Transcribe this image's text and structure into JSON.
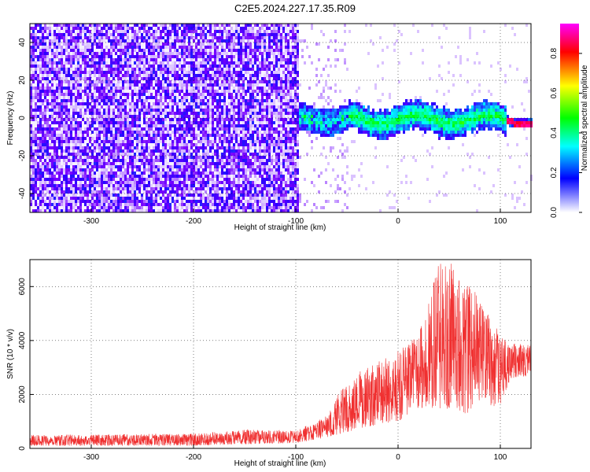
{
  "title": "C2E5.2024.227.17.35.R09",
  "chart_data": [
    {
      "type": "heatmap",
      "xlabel": "Height of straight line (km)",
      "ylabel": "Frequency (Hz)",
      "xlim": [
        -360,
        130
      ],
      "ylim": [
        -50,
        50
      ],
      "x_ticks": [
        -300,
        -200,
        -100,
        0,
        100
      ],
      "x_tick_labels": [
        "-300",
        "-200",
        "-100",
        "0",
        "100"
      ],
      "y_ticks": [
        -40,
        -20,
        0,
        20,
        40
      ],
      "y_tick_labels": [
        "-40",
        "-20",
        "0",
        "20",
        "40"
      ],
      "colorbar": {
        "label": "Normalized spectral amplitude",
        "range": [
          0,
          0.95
        ],
        "ticks": [
          0,
          0.2,
          0.4,
          0.6,
          0.8
        ],
        "tick_labels": [
          "0.0",
          "0.2",
          "0.4",
          "0.6",
          "0.8"
        ],
        "colormap": [
          "#ff00ff",
          "#ff0000",
          "#ffff00",
          "#00ff00",
          "#00ffff",
          "#0000ff",
          "#ffffff"
        ]
      },
      "regions": [
        {
          "x_range": [
            -360,
            -100
          ],
          "freq_range": [
            -50,
            50
          ],
          "amplitude": 0.15,
          "description_color": "#7b00ff"
        },
        {
          "x_range": [
            -100,
            130
          ],
          "freq_center": 0,
          "freq_halfwidth": 6,
          "amplitude": 0.25
        }
      ],
      "grid": true
    },
    {
      "type": "line",
      "xlabel": "Height of straight line (km)",
      "ylabel": "SNR (10 * v/v)",
      "xlim": [
        -360,
        130
      ],
      "ylim": [
        0,
        7000
      ],
      "x_ticks": [
        -300,
        -200,
        -100,
        0,
        100
      ],
      "x_tick_labels": [
        "-300",
        "-200",
        "-100",
        "0",
        "100"
      ],
      "y_ticks": [
        0,
        2000,
        4000,
        6000
      ],
      "y_tick_labels": [
        "0",
        "2000",
        "4000",
        "6000"
      ],
      "series_color": "#f03030",
      "envelope": {
        "x": [
          -360,
          -200,
          -150,
          -100,
          -70,
          -50,
          -30,
          0,
          20,
          40,
          60,
          80,
          100,
          110,
          130
        ],
        "y_min": [
          100,
          100,
          150,
          200,
          400,
          600,
          800,
          1000,
          1500,
          1500,
          1200,
          1500,
          1600,
          2600,
          2700
        ],
        "y_max": [
          500,
          550,
          700,
          650,
          1200,
          2600,
          3000,
          3600,
          4200,
          7000,
          6800,
          5500,
          4300,
          3900,
          3900
        ]
      },
      "grid": true
    }
  ]
}
